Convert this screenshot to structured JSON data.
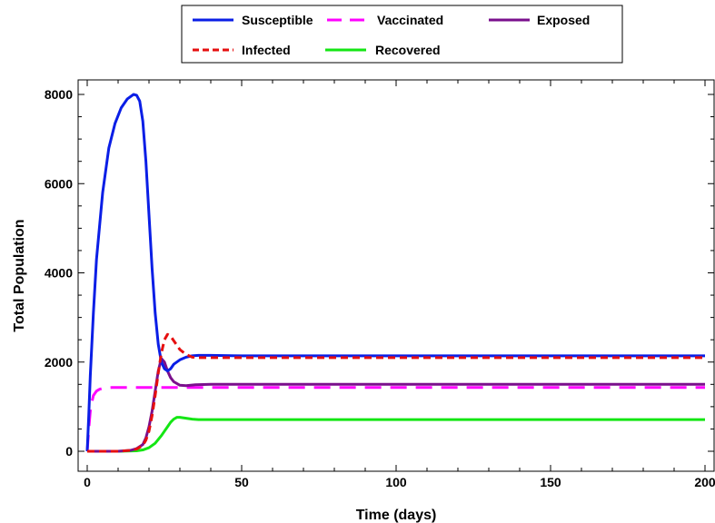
{
  "chart_data": {
    "type": "line",
    "title": "",
    "xlabel": "Time (days)",
    "ylabel": "Total Population",
    "xlim": [
      0,
      200
    ],
    "ylim": [
      0,
      8000
    ],
    "xticks": [
      0,
      50,
      100,
      150,
      200
    ],
    "yticks": [
      0,
      2000,
      4000,
      6000,
      8000
    ],
    "grid": false,
    "legend_position": "top-center",
    "series": [
      {
        "name": "Susceptible",
        "color": "#0a1ee6",
        "dash": "solid",
        "x": [
          0,
          0.5,
          1,
          2,
          3,
          5,
          7,
          9,
          11,
          13,
          15,
          16,
          17,
          18,
          19,
          20,
          21,
          22,
          23,
          24,
          25,
          26,
          27,
          28,
          30,
          32,
          34,
          36,
          40,
          50,
          100,
          150,
          200
        ],
        "y": [
          0,
          800,
          1700,
          3100,
          4300,
          5800,
          6800,
          7350,
          7700,
          7900,
          8000,
          7980,
          7850,
          7400,
          6500,
          5300,
          4100,
          3100,
          2400,
          2000,
          1850,
          1800,
          1850,
          1950,
          2050,
          2110,
          2140,
          2150,
          2150,
          2140,
          2140,
          2140,
          2140
        ]
      },
      {
        "name": "Vaccinated",
        "color": "#ff00ff",
        "dash": "long",
        "x": [
          0,
          0.5,
          1,
          1.5,
          2,
          3,
          4,
          5,
          6,
          8,
          10,
          15,
          20,
          30,
          50,
          100,
          150,
          200
        ],
        "y": [
          0,
          500,
          900,
          1100,
          1250,
          1350,
          1390,
          1410,
          1420,
          1430,
          1430,
          1430,
          1430,
          1430,
          1430,
          1430,
          1430,
          1430
        ]
      },
      {
        "name": "Exposed",
        "color": "#7a0f8c",
        "dash": "solid",
        "x": [
          0,
          10,
          14,
          16,
          18,
          19,
          20,
          21,
          22,
          23,
          24,
          25,
          26,
          27,
          28,
          30,
          32,
          35,
          40,
          50,
          100,
          150,
          200
        ],
        "y": [
          0,
          0,
          20,
          60,
          150,
          300,
          550,
          900,
          1350,
          1800,
          2080,
          2000,
          1800,
          1650,
          1560,
          1480,
          1470,
          1490,
          1500,
          1500,
          1500,
          1500,
          1500
        ]
      },
      {
        "name": "Infected",
        "color": "#e60f0f",
        "dash": "short",
        "x": [
          0,
          10,
          14,
          16,
          18,
          19,
          20,
          21,
          22,
          23,
          24,
          25,
          26,
          27,
          28,
          29,
          30,
          32,
          34,
          36,
          38,
          40,
          50,
          100,
          150,
          200
        ],
        "y": [
          0,
          0,
          20,
          50,
          130,
          250,
          450,
          800,
          1250,
          1750,
          2200,
          2500,
          2620,
          2580,
          2480,
          2380,
          2280,
          2170,
          2110,
          2100,
          2100,
          2100,
          2100,
          2100,
          2100,
          2100
        ]
      },
      {
        "name": "Recovered",
        "color": "#14e614",
        "dash": "solid",
        "x": [
          0,
          10,
          16,
          18,
          20,
          22,
          24,
          26,
          27,
          28,
          29,
          30,
          32,
          34,
          36,
          40,
          50,
          100,
          150,
          200
        ],
        "y": [
          0,
          0,
          10,
          30,
          80,
          180,
          350,
          550,
          650,
          720,
          760,
          760,
          740,
          720,
          710,
          710,
          710,
          710,
          710,
          710
        ]
      }
    ]
  }
}
